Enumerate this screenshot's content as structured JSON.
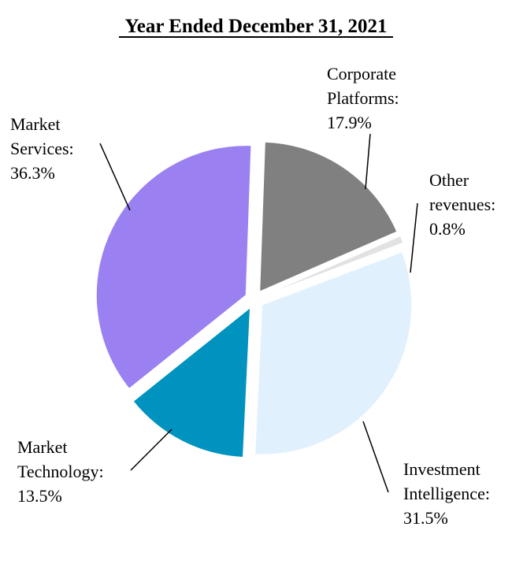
{
  "chart_data": {
    "type": "pie",
    "title": "Year Ended December 31, 2021",
    "start_angle_deg": -88,
    "direction": "clockwise",
    "exploded": true,
    "slices": [
      {
        "name": "Corporate Platforms",
        "label_lines": [
          "Corporate",
          "Platforms:"
        ],
        "value_label": "17.9%",
        "value": 17.9,
        "color": "#808080"
      },
      {
        "name": "Other revenues",
        "label_lines": [
          "Other",
          "revenues:"
        ],
        "value_label": "0.8%",
        "value": 0.8,
        "color": "#e2e2e2"
      },
      {
        "name": "Investment Intelligence",
        "label_lines": [
          "Investment",
          "Intelligence:"
        ],
        "value_label": "31.5%",
        "value": 31.5,
        "color": "#e1f0fd"
      },
      {
        "name": "Market Technology",
        "label_lines": [
          "Market",
          "Technology:"
        ],
        "value_label": "13.5%",
        "value": 13.5,
        "color": "#0093bf"
      },
      {
        "name": "Market Services",
        "label_lines": [
          "Market",
          "Services:"
        ],
        "value_label": "36.3%",
        "value": 36.3,
        "color": "#9b80f2"
      }
    ]
  }
}
